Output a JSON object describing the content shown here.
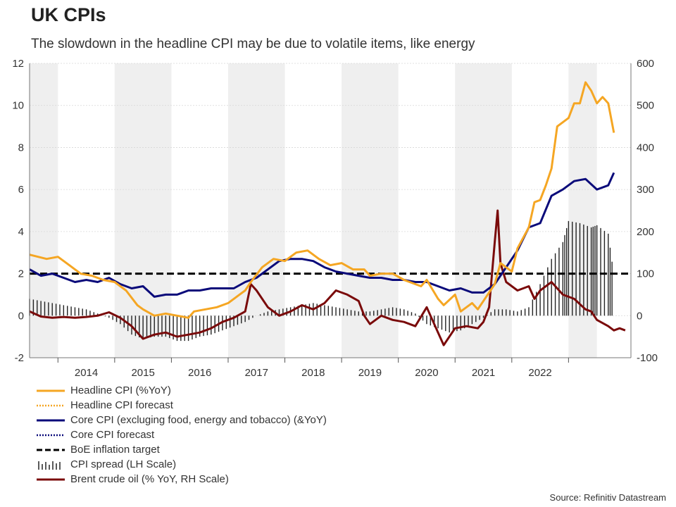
{
  "title": "UK CPIs",
  "subtitle": "The slowdown in the headline CPI may be due to volatile items, like energy",
  "source": "Source: Refinitiv Datastream",
  "colors": {
    "headline": "#f5a623",
    "core": "#0a0a7a",
    "brent": "#7a0a0a",
    "target": "#000000",
    "spread": "#222222",
    "band": "#efefef"
  },
  "chart_data": {
    "type": "line",
    "x_labels": [
      "2014",
      "2015",
      "2016",
      "2017",
      "2018",
      "2019",
      "2020",
      "2021",
      "2022"
    ],
    "y_left": {
      "ticks": [
        "12",
        "10",
        "8",
        "6",
        "4",
        "2",
        "0",
        "-2"
      ],
      "lim": [
        -2,
        12
      ]
    },
    "y_right": {
      "ticks": [
        "600",
        "500",
        "400",
        "300",
        "200",
        "100",
        "0",
        "-100"
      ],
      "lim": [
        -100,
        600
      ]
    },
    "grid": true,
    "legend_position": "bottom",
    "series": [
      {
        "name": "Headline CPI (%YoY)",
        "key": "headline",
        "axis": "left",
        "points": [
          [
            2013.0,
            2.9
          ],
          [
            2013.3,
            2.7
          ],
          [
            2013.5,
            2.8
          ],
          [
            2013.7,
            2.4
          ],
          [
            2013.9,
            2.0
          ],
          [
            2014.1,
            1.9
          ],
          [
            2014.3,
            1.7
          ],
          [
            2014.5,
            1.6
          ],
          [
            2014.7,
            1.2
          ],
          [
            2014.9,
            0.5
          ],
          [
            2015.0,
            0.3
          ],
          [
            2015.2,
            0.0
          ],
          [
            2015.4,
            0.1
          ],
          [
            2015.6,
            0.0
          ],
          [
            2015.8,
            -0.1
          ],
          [
            2015.9,
            0.2
          ],
          [
            2016.1,
            0.3
          ],
          [
            2016.3,
            0.4
          ],
          [
            2016.5,
            0.6
          ],
          [
            2016.7,
            1.0
          ],
          [
            2016.8,
            1.2
          ],
          [
            2016.9,
            1.6
          ],
          [
            2017.1,
            2.3
          ],
          [
            2017.3,
            2.7
          ],
          [
            2017.5,
            2.6
          ],
          [
            2017.7,
            3.0
          ],
          [
            2017.9,
            3.1
          ],
          [
            2018.1,
            2.7
          ],
          [
            2018.3,
            2.4
          ],
          [
            2018.5,
            2.5
          ],
          [
            2018.7,
            2.2
          ],
          [
            2018.9,
            2.2
          ],
          [
            2019.0,
            1.9
          ],
          [
            2019.2,
            2.0
          ],
          [
            2019.4,
            2.0
          ],
          [
            2019.6,
            1.7
          ],
          [
            2019.8,
            1.5
          ],
          [
            2019.9,
            1.4
          ],
          [
            2020.0,
            1.7
          ],
          [
            2020.2,
            0.8
          ],
          [
            2020.3,
            0.5
          ],
          [
            2020.5,
            1.0
          ],
          [
            2020.6,
            0.2
          ],
          [
            2020.8,
            0.6
          ],
          [
            2020.9,
            0.3
          ],
          [
            2021.0,
            0.7
          ],
          [
            2021.2,
            1.5
          ],
          [
            2021.3,
            2.5
          ],
          [
            2021.5,
            2.1
          ],
          [
            2021.6,
            3.2
          ],
          [
            2021.8,
            4.2
          ],
          [
            2021.9,
            5.4
          ],
          [
            2022.0,
            5.5
          ],
          [
            2022.1,
            6.2
          ],
          [
            2022.2,
            7.0
          ],
          [
            2022.3,
            9.0
          ],
          [
            2022.5,
            9.4
          ],
          [
            2022.6,
            10.1
          ],
          [
            2022.7,
            10.1
          ],
          [
            2022.8,
            11.1
          ],
          [
            2022.9,
            10.7
          ],
          [
            2023.0,
            10.1
          ],
          [
            2023.1,
            10.4
          ],
          [
            2023.2,
            10.1
          ],
          [
            2023.3,
            8.7
          ]
        ]
      },
      {
        "name": "Headline CPI forecast",
        "key": "headline_forecast",
        "axis": "left",
        "points": []
      },
      {
        "name": "Core CPI (excluging food, energy and tobacco) (&YoY)",
        "key": "core",
        "axis": "left",
        "points": [
          [
            2013.0,
            2.2
          ],
          [
            2013.2,
            1.9
          ],
          [
            2013.4,
            2.0
          ],
          [
            2013.6,
            1.8
          ],
          [
            2013.8,
            1.6
          ],
          [
            2014.0,
            1.7
          ],
          [
            2014.2,
            1.6
          ],
          [
            2014.4,
            1.8
          ],
          [
            2014.6,
            1.5
          ],
          [
            2014.8,
            1.3
          ],
          [
            2015.0,
            1.4
          ],
          [
            2015.2,
            0.9
          ],
          [
            2015.4,
            1.0
          ],
          [
            2015.6,
            1.0
          ],
          [
            2015.8,
            1.2
          ],
          [
            2016.0,
            1.2
          ],
          [
            2016.2,
            1.3
          ],
          [
            2016.4,
            1.3
          ],
          [
            2016.6,
            1.3
          ],
          [
            2016.8,
            1.6
          ],
          [
            2017.0,
            1.8
          ],
          [
            2017.2,
            2.2
          ],
          [
            2017.4,
            2.6
          ],
          [
            2017.6,
            2.7
          ],
          [
            2017.8,
            2.7
          ],
          [
            2018.0,
            2.6
          ],
          [
            2018.2,
            2.3
          ],
          [
            2018.4,
            2.1
          ],
          [
            2018.6,
            2.0
          ],
          [
            2018.8,
            1.9
          ],
          [
            2019.0,
            1.8
          ],
          [
            2019.2,
            1.8
          ],
          [
            2019.4,
            1.7
          ],
          [
            2019.6,
            1.7
          ],
          [
            2019.8,
            1.6
          ],
          [
            2020.0,
            1.6
          ],
          [
            2020.2,
            1.4
          ],
          [
            2020.4,
            1.2
          ],
          [
            2020.6,
            1.3
          ],
          [
            2020.8,
            1.1
          ],
          [
            2021.0,
            1.1
          ],
          [
            2021.2,
            1.5
          ],
          [
            2021.4,
            2.3
          ],
          [
            2021.6,
            3.1
          ],
          [
            2021.8,
            4.2
          ],
          [
            2022.0,
            4.4
          ],
          [
            2022.2,
            5.7
          ],
          [
            2022.4,
            6.0
          ],
          [
            2022.6,
            6.4
          ],
          [
            2022.8,
            6.5
          ],
          [
            2023.0,
            6.0
          ],
          [
            2023.2,
            6.2
          ],
          [
            2023.3,
            6.8
          ]
        ]
      },
      {
        "name": "Core CPI forecast",
        "key": "core_forecast",
        "axis": "left",
        "points": []
      },
      {
        "name": "BoE inflation target",
        "key": "target",
        "axis": "left",
        "value": 2
      },
      {
        "name": "CPI spread (LH Scale)",
        "key": "spread",
        "axis": "left",
        "points": [
          [
            2013.0,
            0.8
          ],
          [
            2013.2,
            0.7
          ],
          [
            2013.4,
            0.6
          ],
          [
            2013.6,
            0.5
          ],
          [
            2013.8,
            0.4
          ],
          [
            2014.0,
            0.3
          ],
          [
            2014.2,
            0.1
          ],
          [
            2014.4,
            -0.1
          ],
          [
            2014.6,
            -0.4
          ],
          [
            2014.8,
            -0.9
          ],
          [
            2015.0,
            -1.1
          ],
          [
            2015.2,
            -1.0
          ],
          [
            2015.4,
            -1.0
          ],
          [
            2015.6,
            -1.2
          ],
          [
            2015.8,
            -1.2
          ],
          [
            2016.0,
            -1.0
          ],
          [
            2016.2,
            -0.9
          ],
          [
            2016.4,
            -0.7
          ],
          [
            2016.6,
            -0.5
          ],
          [
            2016.8,
            -0.3
          ],
          [
            2017.0,
            0.0
          ],
          [
            2017.2,
            0.2
          ],
          [
            2017.4,
            0.3
          ],
          [
            2017.6,
            0.4
          ],
          [
            2017.8,
            0.5
          ],
          [
            2018.0,
            0.6
          ],
          [
            2018.2,
            0.5
          ],
          [
            2018.4,
            0.4
          ],
          [
            2018.6,
            0.3
          ],
          [
            2018.8,
            0.2
          ],
          [
            2019.0,
            0.2
          ],
          [
            2019.2,
            0.3
          ],
          [
            2019.4,
            0.4
          ],
          [
            2019.6,
            0.3
          ],
          [
            2019.8,
            0.1
          ],
          [
            2020.0,
            -0.4
          ],
          [
            2020.2,
            -0.6
          ],
          [
            2020.4,
            -0.8
          ],
          [
            2020.6,
            -0.7
          ],
          [
            2020.8,
            -0.4
          ],
          [
            2021.0,
            -0.1
          ],
          [
            2021.2,
            0.3
          ],
          [
            2021.4,
            0.3
          ],
          [
            2021.6,
            0.2
          ],
          [
            2021.8,
            0.4
          ],
          [
            2022.0,
            1.5
          ],
          [
            2022.2,
            2.7
          ],
          [
            2022.4,
            3.5
          ],
          [
            2022.5,
            4.5
          ],
          [
            2022.7,
            4.4
          ],
          [
            2022.9,
            4.2
          ],
          [
            2023.0,
            4.3
          ],
          [
            2023.2,
            3.9
          ],
          [
            2023.3,
            1.9
          ]
        ]
      },
      {
        "name": "Brent crude oil (% YoY, RH Scale)",
        "key": "brent",
        "axis": "right",
        "points": [
          [
            2013.0,
            10
          ],
          [
            2013.2,
            -2
          ],
          [
            2013.4,
            -5
          ],
          [
            2013.6,
            -3
          ],
          [
            2013.8,
            -5
          ],
          [
            2014.0,
            -3
          ],
          [
            2014.2,
            0
          ],
          [
            2014.4,
            8
          ],
          [
            2014.6,
            -5
          ],
          [
            2014.8,
            -25
          ],
          [
            2015.0,
            -55
          ],
          [
            2015.2,
            -45
          ],
          [
            2015.4,
            -40
          ],
          [
            2015.6,
            -50
          ],
          [
            2015.8,
            -45
          ],
          [
            2016.0,
            -40
          ],
          [
            2016.2,
            -30
          ],
          [
            2016.4,
            -15
          ],
          [
            2016.6,
            -5
          ],
          [
            2016.8,
            10
          ],
          [
            2016.9,
            75
          ],
          [
            2017.0,
            60
          ],
          [
            2017.2,
            20
          ],
          [
            2017.4,
            0
          ],
          [
            2017.6,
            10
          ],
          [
            2017.8,
            25
          ],
          [
            2018.0,
            15
          ],
          [
            2018.2,
            30
          ],
          [
            2018.4,
            60
          ],
          [
            2018.6,
            50
          ],
          [
            2018.8,
            35
          ],
          [
            2018.9,
            0
          ],
          [
            2019.0,
            -20
          ],
          [
            2019.2,
            0
          ],
          [
            2019.4,
            -10
          ],
          [
            2019.6,
            -15
          ],
          [
            2019.8,
            -25
          ],
          [
            2020.0,
            20
          ],
          [
            2020.1,
            -10
          ],
          [
            2020.3,
            -70
          ],
          [
            2020.5,
            -30
          ],
          [
            2020.7,
            -25
          ],
          [
            2020.9,
            -30
          ],
          [
            2021.0,
            -15
          ],
          [
            2021.1,
            20
          ],
          [
            2021.2,
            175
          ],
          [
            2021.25,
            250
          ],
          [
            2021.3,
            125
          ],
          [
            2021.4,
            80
          ],
          [
            2021.6,
            60
          ],
          [
            2021.8,
            70
          ],
          [
            2021.9,
            40
          ],
          [
            2022.0,
            60
          ],
          [
            2022.2,
            80
          ],
          [
            2022.4,
            50
          ],
          [
            2022.6,
            40
          ],
          [
            2022.8,
            15
          ],
          [
            2022.9,
            10
          ],
          [
            2023.0,
            -10
          ],
          [
            2023.2,
            -25
          ],
          [
            2023.3,
            -35
          ],
          [
            2023.4,
            -30
          ],
          [
            2023.5,
            -35
          ]
        ]
      }
    ]
  }
}
